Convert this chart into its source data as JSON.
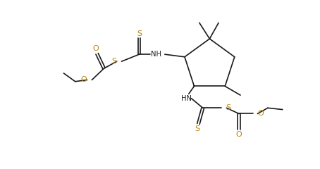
{
  "bg_color": "#ffffff",
  "line_color": "#1a1a1a",
  "s_color": "#b8860b",
  "o_color": "#b8860b",
  "n_color": "#1a1a1a",
  "figsize": [
    4.54,
    2.4
  ],
  "dpi": 100,
  "xlim": [
    0,
    10
  ],
  "ylim": [
    0,
    5.28
  ]
}
